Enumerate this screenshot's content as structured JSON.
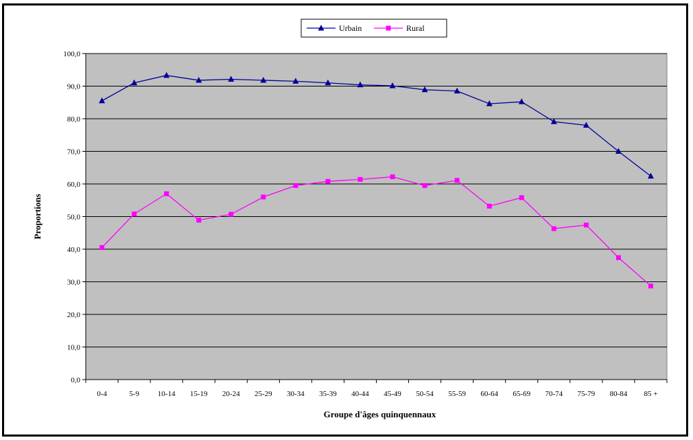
{
  "chart_data": {
    "type": "line",
    "xlabel": "Groupe d'âges quinquennaux",
    "ylabel": "Proportions",
    "ylim": [
      0,
      100
    ],
    "yticks": [
      "0,0",
      "10,0",
      "20,0",
      "30,0",
      "40,0",
      "50,0",
      "60,0",
      "70,0",
      "80,0",
      "90,0",
      "100,0"
    ],
    "categories": [
      "0-4",
      "5-9",
      "10-14",
      "15-19",
      "20-24",
      "25-29",
      "30-34",
      "35-39",
      "40-44",
      "45-49",
      "50-54",
      "55-59",
      "60-64",
      "65-69",
      "70-74",
      "75-79",
      "80-84",
      "85 +"
    ],
    "grid": "horizontal",
    "legend_position": "top-center",
    "plot_background": "#c0c0c0",
    "series": [
      {
        "name": "Urbain",
        "color": "#000099",
        "marker": "triangle",
        "values": [
          85.5,
          91.0,
          93.3,
          91.8,
          92.1,
          91.8,
          91.5,
          91.0,
          90.4,
          90.1,
          88.9,
          88.5,
          84.6,
          85.2,
          79.1,
          78.0,
          70.0,
          62.4
        ]
      },
      {
        "name": "Rural",
        "color": "#ff00ff",
        "marker": "square",
        "values": [
          40.5,
          50.8,
          57.0,
          48.9,
          50.7,
          56.0,
          59.5,
          60.8,
          61.4,
          62.2,
          59.5,
          61.1,
          53.2,
          55.8,
          46.3,
          47.4,
          37.4,
          28.7
        ]
      }
    ]
  }
}
